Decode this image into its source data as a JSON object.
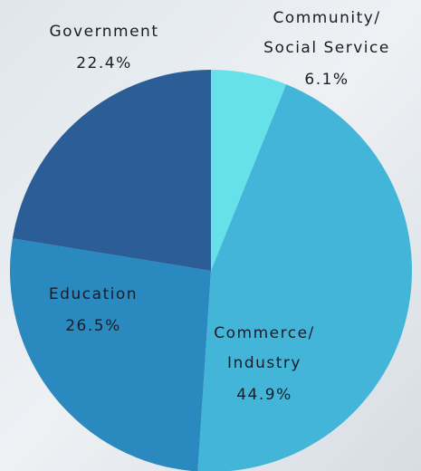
{
  "chart_data": {
    "type": "pie",
    "categories": [
      "Community/\nSocial Service",
      "Commerce/\nIndustry",
      "Education",
      "Government"
    ],
    "values": [
      6.1,
      44.9,
      26.5,
      22.4
    ],
    "value_labels": [
      "6.1%",
      "44.9%",
      "26.5%",
      "22.4%"
    ],
    "colors": [
      "#67e1e9",
      "#42b5d8",
      "#2a89bf",
      "#2b5d96"
    ]
  }
}
